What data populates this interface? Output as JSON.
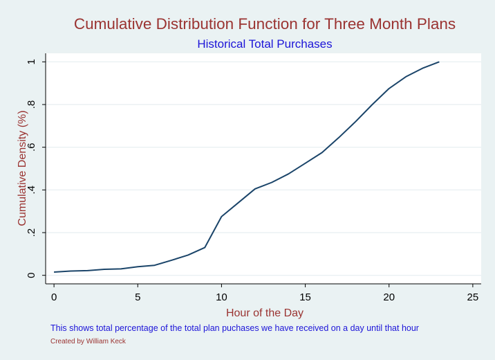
{
  "colors": {
    "background": "#eaf2f3",
    "plot_background": "#ffffff",
    "title": "#9a3331",
    "subtitle": "#1c14d8",
    "axis_title": "#9a3331",
    "line": "#1a4469",
    "grid": "#e6eef0",
    "note": "#1c14d8",
    "credit": "#9a3331",
    "axis": "#000000"
  },
  "chart_data": {
    "type": "line",
    "title": "Cumulative Distribution Function for Three Month Plans",
    "subtitle": "Historical Total Purchases",
    "xlabel": "Hour of the Day",
    "ylabel": "Cumulative Density (%)",
    "xlim": [
      -0.5,
      25.5
    ],
    "ylim": [
      -0.04,
      1.04
    ],
    "xticks": [
      0,
      5,
      10,
      15,
      20,
      25
    ],
    "xtick_labels": [
      "0",
      "5",
      "10",
      "15",
      "20",
      "25"
    ],
    "yticks": [
      0,
      0.2,
      0.4,
      0.6,
      0.8,
      1
    ],
    "ytick_labels": [
      "0",
      ".2",
      ".4",
      ".6",
      ".8",
      "1"
    ],
    "grid": true,
    "legend": "none",
    "series": [
      {
        "x": [
          0,
          1,
          2,
          3,
          4,
          5,
          6,
          7,
          8,
          9,
          10,
          11,
          12,
          13,
          14,
          15,
          16,
          17,
          18,
          19,
          20,
          21,
          22,
          23
        ],
        "values": [
          0.015,
          0.02,
          0.022,
          0.028,
          0.03,
          0.04,
          0.047,
          0.07,
          0.095,
          0.13,
          0.275,
          0.34,
          0.405,
          0.435,
          0.475,
          0.525,
          0.575,
          0.645,
          0.72,
          0.8,
          0.875,
          0.93,
          0.97,
          1.0
        ]
      }
    ]
  },
  "note": "This shows total percentage of the total plan puchases we have received on a day until that hour",
  "credit": "Created by William Keck"
}
